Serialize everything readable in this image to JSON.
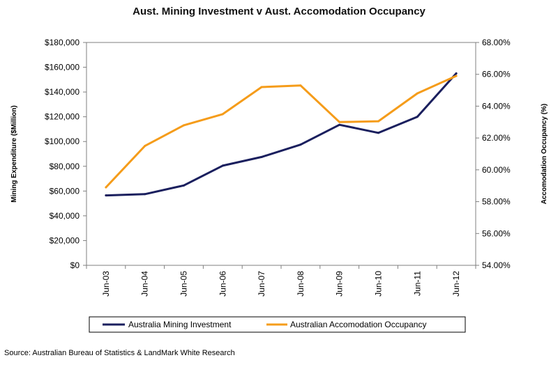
{
  "chart_data": {
    "type": "line",
    "title": "Aust. Mining Investment v  Aust. Accomodation Occupancy",
    "categories": [
      "Jun-03",
      "Jun-04",
      "Jun-05",
      "Jun-06",
      "Jun-07",
      "Jun-08",
      "Jun-09",
      "Jun-10",
      "Jun-11",
      "Jun-12"
    ],
    "y_left": {
      "label": "Mining Expenditure ($Million)",
      "range": [
        0,
        180000
      ],
      "ticks": [
        "$0",
        "$20,000",
        "$40,000",
        "$60,000",
        "$80,000",
        "$100,000",
        "$120,000",
        "$140,000",
        "$160,000",
        "$180,000"
      ]
    },
    "y_right": {
      "label": "Accomodation Occupancy (%)",
      "range": [
        54,
        68
      ],
      "ticks": [
        "54.00%",
        "56.00%",
        "58.00%",
        "60.00%",
        "62.00%",
        "64.00%",
        "66.00%",
        "68.00%"
      ]
    },
    "series": [
      {
        "name": "Australia Mining Investment",
        "axis": "left",
        "color": "#1a1f5e",
        "values": [
          56500,
          57500,
          64500,
          80500,
          87500,
          97500,
          113500,
          107000,
          120000,
          155000
        ]
      },
      {
        "name": "Australian Accomodation Occupancy",
        "axis": "right",
        "color": "#f59c1a",
        "values": [
          58.9,
          61.5,
          62.8,
          63.5,
          65.2,
          65.3,
          63.0,
          63.05,
          64.8,
          65.9
        ]
      }
    ],
    "grid": false,
    "legend": "bottom",
    "source": "Source: Australian Bureau of Statistics & LandMark White Research"
  }
}
